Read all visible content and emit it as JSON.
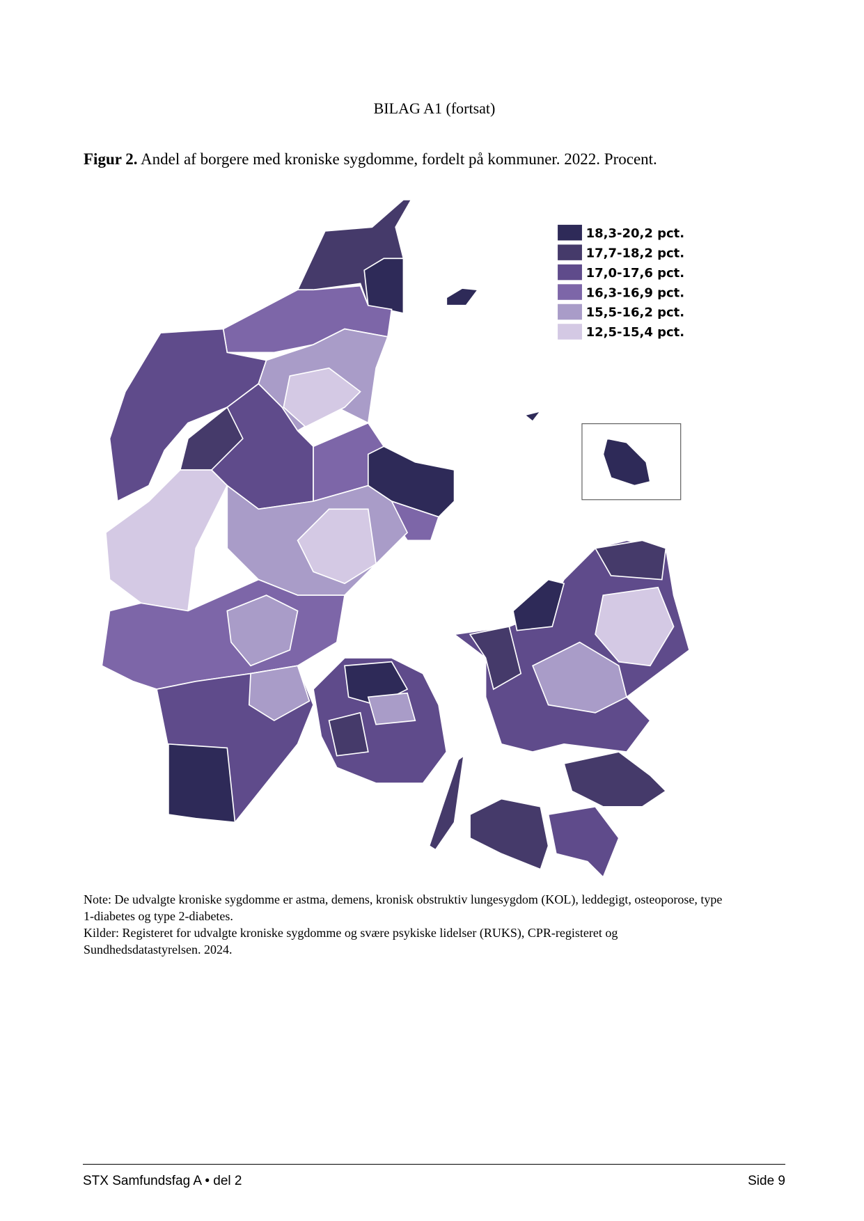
{
  "header": {
    "title": "BILAG A1 (fortsat)"
  },
  "figure": {
    "label": "Figur 2.",
    "caption": "Andel af borgere med kroniske sygdomme, fordelt på kommuner. 2022. Procent.",
    "legend": [
      {
        "label": "18,3-20,2 pct.",
        "color": "#2e2a58"
      },
      {
        "label": "17,7-18,2 pct.",
        "color": "#453a6a"
      },
      {
        "label": "17,0-17,6 pct.",
        "color": "#5f4b8b"
      },
      {
        "label": "16,3-16,9 pct.",
        "color": "#7d66a8"
      },
      {
        "label": "15,5-16,2 pct.",
        "color": "#a99cc8"
      },
      {
        "label": "12,5-15,4 pct.",
        "color": "#d4c9e4"
      }
    ]
  },
  "note": "Note: De udvalgte kroniske sygdomme er astma, demens, kronisk obstruktiv lungesygdom (KOL), leddegigt, osteoporose, type 1-diabetes og type 2-diabetes.",
  "sources": "Kilder: Registeret for udvalgte kroniske sygdomme og svære psykiske lidelser (RUKS), CPR-registeret og Sundhedsdatastyrelsen. 2024.",
  "footer": {
    "left": "STX Samfundsfag A • del 2",
    "right": "Side 9"
  }
}
